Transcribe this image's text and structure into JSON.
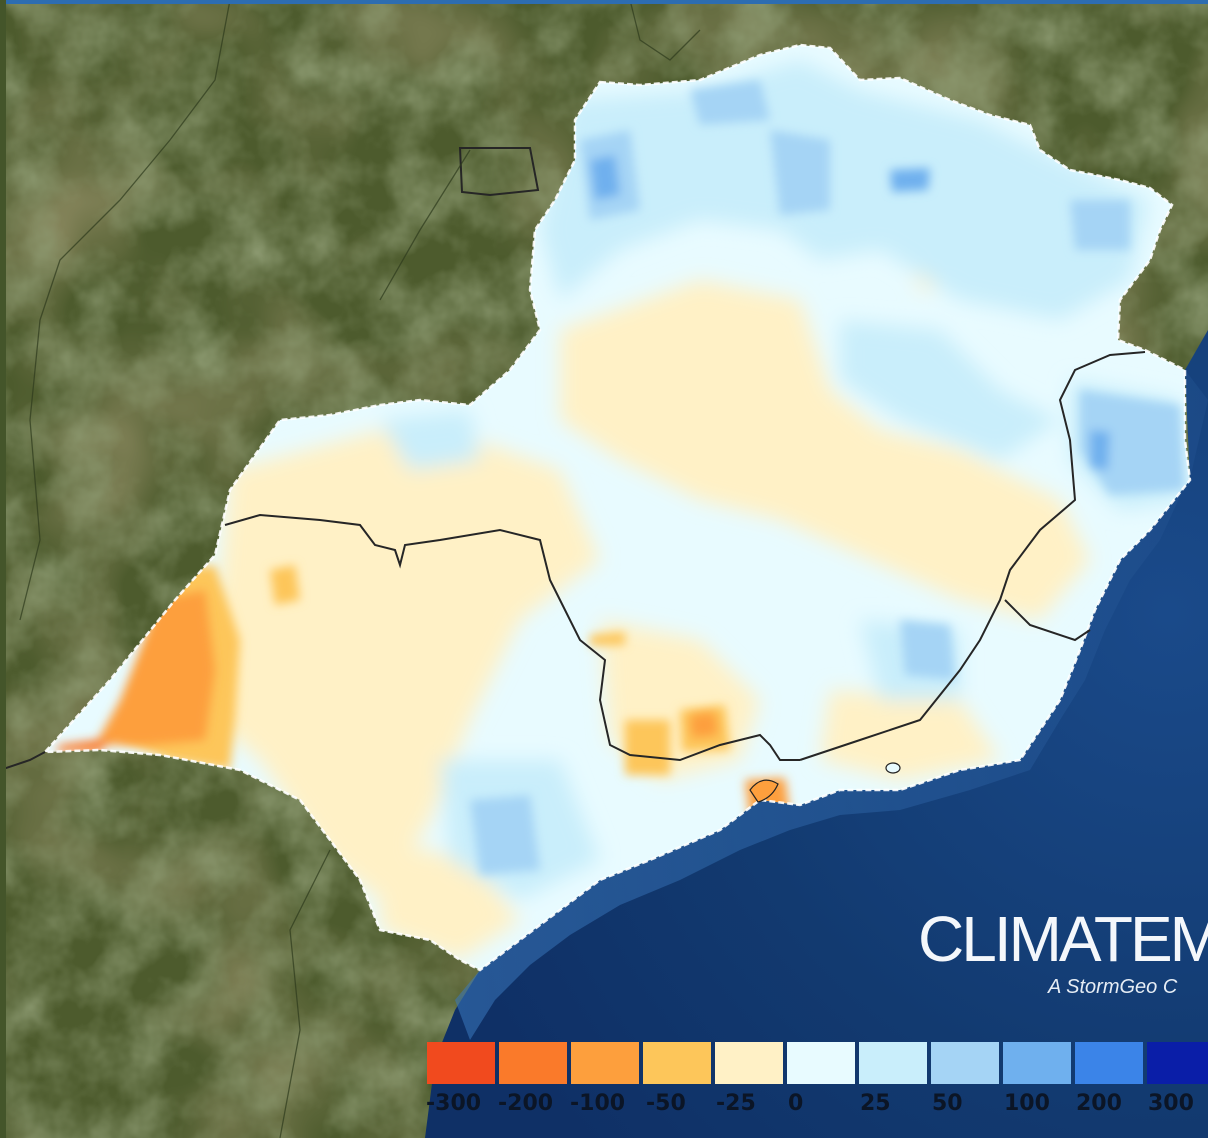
{
  "map": {
    "attribution": {
      "name": "CLIMATEM",
      "tagline": "A StormGeo C"
    },
    "legend": {
      "title": "",
      "classes": [
        {
          "color": "#f14a1e",
          "value": -300
        },
        {
          "color": "#fa7a2a",
          "value": -200
        },
        {
          "color": "#fd9f3d",
          "value": -100
        },
        {
          "color": "#fdc65a",
          "value": -50
        },
        {
          "color": "#fff1c6",
          "value": -25
        },
        {
          "color": "#e8fbff",
          "value": 0
        },
        {
          "color": "#c9eefb",
          "value": 25
        },
        {
          "color": "#a5d4f5",
          "value": 50
        },
        {
          "color": "#6fb0ee",
          "value": 100
        },
        {
          "color": "#3b84e8",
          "value": 200
        },
        {
          "color": "#0a1ea8",
          "value": 300
        }
      ],
      "ticks": [
        "-300",
        "-200",
        "-100",
        "-50",
        "-25",
        "0",
        "25",
        "50",
        "100",
        "200",
        "300"
      ]
    },
    "colors": {
      "land": "#4f5d2f",
      "ocean_deep": "#123a70",
      "ocean_shelf": "#2b62a8",
      "borders": "#222222",
      "topbar": "#2d6db1"
    }
  }
}
